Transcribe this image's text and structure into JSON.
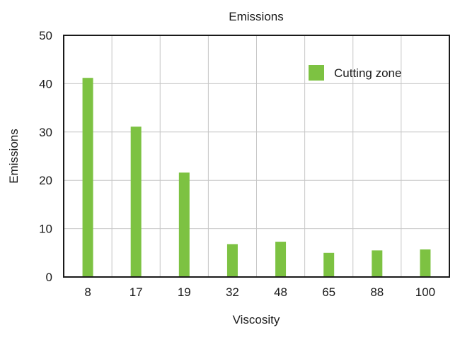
{
  "chart_data": {
    "type": "bar",
    "title": "Emissions",
    "xlabel": "Viscosity",
    "ylabel": "Emissions",
    "categories": [
      "8",
      "17",
      "19",
      "32",
      "48",
      "65",
      "88",
      "100"
    ],
    "series": [
      {
        "name": "Cutting zone",
        "values": [
          41.2,
          31.1,
          21.6,
          6.8,
          7.3,
          5.0,
          5.5,
          5.7
        ]
      }
    ],
    "ylim": [
      0,
      50
    ],
    "yticks": [
      0,
      10,
      20,
      30,
      40,
      50
    ],
    "grid": true,
    "legend_position": "top-right",
    "colors": {
      "bar": "#7dc242",
      "grid": "#c6c6c6",
      "frame": "#1a1a1a"
    }
  }
}
